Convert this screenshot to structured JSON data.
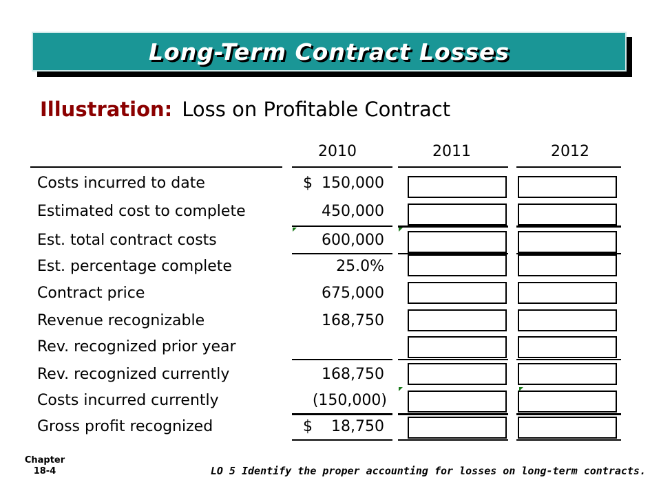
{
  "title": "Long-Term Contract Losses",
  "subtitle": {
    "lead": "Illustration:",
    "rest": "Loss on Profitable Contract"
  },
  "years": [
    "2010",
    "2011",
    "2012"
  ],
  "rows": [
    {
      "label": "Costs incurred to date",
      "dollar": "$",
      "value": "150,000"
    },
    {
      "label": "Estimated cost to complete",
      "dollar": "",
      "value": "450,000"
    },
    {
      "label": "Est. total contract costs",
      "dollar": "",
      "value": "600,000"
    },
    {
      "label": "Est. percentage complete",
      "dollar": "",
      "value": "25.0%"
    },
    {
      "label": "Contract price",
      "dollar": "",
      "value": "675,000"
    },
    {
      "label": "Revenue recognizable",
      "dollar": "",
      "value": "168,750"
    },
    {
      "label": "Rev. recognized prior year",
      "dollar": "",
      "value": ""
    },
    {
      "label": "Rev. recognized currently",
      "dollar": "",
      "value": "168,750"
    },
    {
      "label": "Costs incurred currently",
      "dollar": "",
      "value": "(150,000)"
    },
    {
      "label": "Gross profit recognized",
      "dollar": "$",
      "value": "18,750"
    }
  ],
  "footer": {
    "chapter_line1": "Chapter",
    "chapter_line2": "18-4",
    "lo": "LO 5 Identify the proper accounting for losses on long-term contracts."
  }
}
